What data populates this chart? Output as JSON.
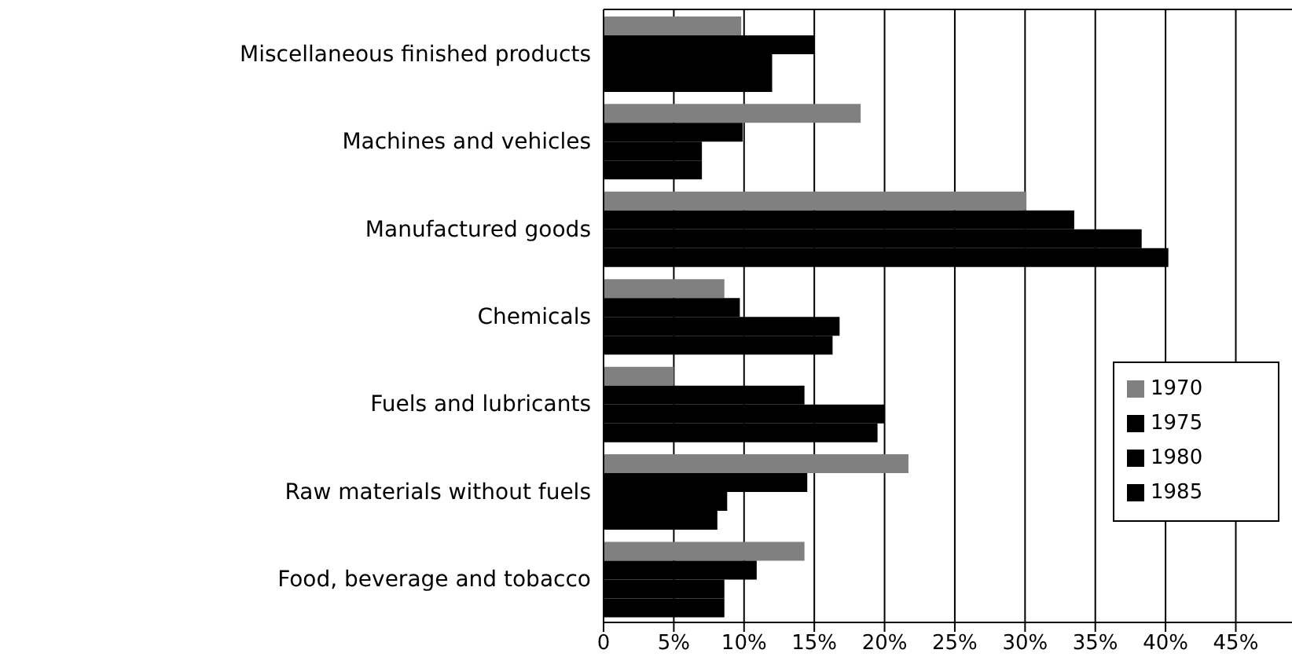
{
  "chart_data": {
    "type": "bar",
    "orientation": "horizontal",
    "categories": [
      "Miscellaneous finished products",
      "Machines and vehicles",
      "Manufactured goods",
      "Chemicals",
      "Fuels and lubricants",
      "Raw materials without fuels",
      "Food, beverage and tobacco"
    ],
    "series": [
      {
        "name": "1970",
        "color": "#808080",
        "values": [
          9.8,
          18.3,
          30.1,
          8.6,
          5,
          21.7,
          14.3
        ]
      },
      {
        "name": "1975",
        "color": "#000000",
        "values": [
          15,
          9.9,
          33.5,
          9.7,
          14.3,
          14.5,
          10.9
        ]
      },
      {
        "name": "1980",
        "color": "#000000",
        "values": [
          12,
          7,
          38.3,
          16.8,
          20,
          8.8,
          8.6
        ]
      },
      {
        "name": "1985",
        "color": "#000000",
        "values": [
          12,
          7,
          40.2,
          16.3,
          19.5,
          8.1,
          8.6
        ]
      }
    ],
    "xlim": [
      0,
      49
    ],
    "xticks": [
      0,
      {
        "value": 5,
        "label": "5%"
      },
      {
        "value": 10,
        "label": "10%"
      },
      {
        "value": 15,
        "label": "15%"
      },
      {
        "value": 20,
        "label": "20%"
      },
      {
        "value": 25,
        "label": "25%"
      },
      {
        "value": 30,
        "label": "30%"
      },
      {
        "value": 35,
        "label": "35%"
      },
      {
        "value": 40,
        "label": "40%"
      },
      {
        "value": 45,
        "label": "45%"
      }
    ],
    "grid": "x",
    "legend": "right"
  }
}
